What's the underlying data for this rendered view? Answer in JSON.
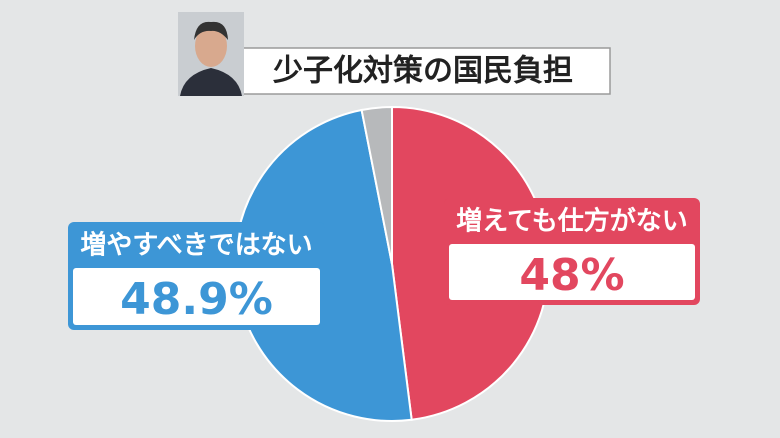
{
  "chart_data": {
    "type": "pie",
    "title": "少子化対策の国民負担",
    "categories": [
      "増えても仕方がない",
      "増やすべきではない",
      null
    ],
    "values": [
      48,
      48.9,
      3.1
    ],
    "value_labels": [
      "48%",
      "48.9%",
      null
    ],
    "colors": [
      "#e2475f",
      "#3d96d6",
      "#b7b9bb"
    ]
  }
}
